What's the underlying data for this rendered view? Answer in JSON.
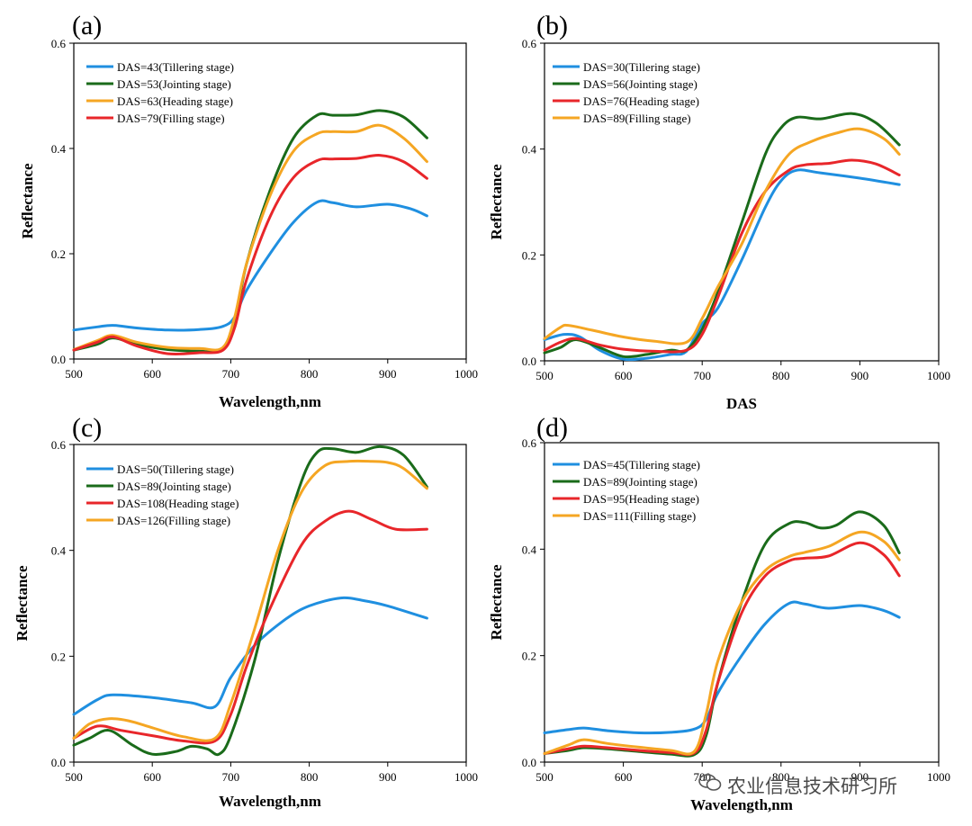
{
  "colors": {
    "blue": "#1f8fe0",
    "green": "#1a6b1a",
    "orange": "#f5a623",
    "red": "#e8262a"
  },
  "watermark": {
    "icon": "wechat-icon",
    "text": "农业信息技术研习所"
  },
  "chart_data": [
    {
      "type": "line",
      "panel": "(a)",
      "xlabel": "Wavelength,nm",
      "ylabel": "Reflectance",
      "xlim": [
        500,
        1000
      ],
      "ylim": [
        0,
        0.6
      ],
      "xticks": [
        "500",
        "600",
        "700",
        "800",
        "900",
        "1000"
      ],
      "yticks": [
        "0.0",
        "0.2",
        "0.4",
        "0.6"
      ],
      "legend_placement": "top-left",
      "series": [
        {
          "name": "DAS=43(Tillering stage)",
          "color": "blue",
          "x": [
            500,
            530,
            550,
            580,
            620,
            660,
            690,
            705,
            720,
            750,
            780,
            810,
            830,
            860,
            900,
            930,
            950
          ],
          "y": [
            0.055,
            0.061,
            0.064,
            0.059,
            0.055,
            0.056,
            0.062,
            0.08,
            0.13,
            0.2,
            0.26,
            0.298,
            0.297,
            0.289,
            0.294,
            0.285,
            0.272
          ]
        },
        {
          "name": "DAS=53(Jointing stage)",
          "color": "green",
          "x": [
            500,
            530,
            550,
            580,
            620,
            660,
            690,
            705,
            720,
            750,
            780,
            810,
            830,
            860,
            890,
            920,
            950
          ],
          "y": [
            0.017,
            0.028,
            0.04,
            0.028,
            0.018,
            0.015,
            0.018,
            0.07,
            0.18,
            0.32,
            0.42,
            0.463,
            0.463,
            0.464,
            0.472,
            0.46,
            0.42
          ]
        },
        {
          "name": "DAS=63(Heading stage)",
          "color": "orange",
          "x": [
            500,
            530,
            550,
            580,
            620,
            660,
            690,
            705,
            720,
            750,
            780,
            810,
            830,
            860,
            890,
            920,
            950
          ],
          "y": [
            0.018,
            0.035,
            0.045,
            0.032,
            0.022,
            0.02,
            0.022,
            0.08,
            0.18,
            0.31,
            0.395,
            0.428,
            0.432,
            0.432,
            0.444,
            0.42,
            0.375
          ]
        },
        {
          "name": "DAS=79(Filling stage)",
          "color": "red",
          "x": [
            500,
            530,
            550,
            580,
            620,
            660,
            690,
            705,
            720,
            750,
            780,
            810,
            830,
            860,
            890,
            920,
            950
          ],
          "y": [
            0.017,
            0.032,
            0.042,
            0.025,
            0.01,
            0.012,
            0.017,
            0.06,
            0.15,
            0.27,
            0.345,
            0.377,
            0.38,
            0.381,
            0.387,
            0.375,
            0.343
          ]
        }
      ]
    },
    {
      "type": "line",
      "panel": "(b)",
      "xlabel": "DAS",
      "ylabel": "Reflectance",
      "xlim": [
        500,
        1000
      ],
      "ylim": [
        0,
        0.6
      ],
      "xticks": [
        "500",
        "600",
        "700",
        "800",
        "900",
        "1000"
      ],
      "yticks": [
        "0.0",
        "0.2",
        "0.4",
        "0.6"
      ],
      "legend_placement": "top-left",
      "series": [
        {
          "name": "DAS=30(Tillering stage)",
          "color": "blue",
          "x": [
            500,
            525,
            545,
            570,
            600,
            630,
            660,
            680,
            700,
            720,
            750,
            780,
            800,
            820,
            850,
            900,
            950
          ],
          "y": [
            0.04,
            0.05,
            0.045,
            0.02,
            0.003,
            0.005,
            0.012,
            0.018,
            0.07,
            0.1,
            0.19,
            0.29,
            0.34,
            0.36,
            0.355,
            0.345,
            0.333
          ]
        },
        {
          "name": "DAS=56(Jointing stage)",
          "color": "green",
          "x": [
            500,
            520,
            540,
            570,
            600,
            630,
            660,
            680,
            700,
            720,
            750,
            780,
            800,
            820,
            850,
            890,
            920,
            950
          ],
          "y": [
            0.015,
            0.025,
            0.04,
            0.025,
            0.008,
            0.012,
            0.02,
            0.02,
            0.06,
            0.13,
            0.26,
            0.39,
            0.44,
            0.46,
            0.457,
            0.467,
            0.45,
            0.408
          ]
        },
        {
          "name": "DAS=76(Heading stage)",
          "color": "red",
          "x": [
            500,
            520,
            540,
            570,
            600,
            640,
            680,
            700,
            720,
            750,
            780,
            810,
            830,
            860,
            890,
            920,
            950
          ],
          "y": [
            0.02,
            0.035,
            0.042,
            0.03,
            0.022,
            0.018,
            0.02,
            0.05,
            0.12,
            0.24,
            0.32,
            0.36,
            0.37,
            0.373,
            0.379,
            0.372,
            0.351
          ]
        },
        {
          "name": "DAS=89(Filling stage)",
          "color": "orange",
          "x": [
            500,
            520,
            530,
            560,
            600,
            640,
            680,
            700,
            720,
            750,
            780,
            810,
            840,
            870,
            900,
            930,
            950
          ],
          "y": [
            0.042,
            0.063,
            0.067,
            0.058,
            0.045,
            0.037,
            0.035,
            0.08,
            0.14,
            0.22,
            0.32,
            0.39,
            0.415,
            0.43,
            0.438,
            0.42,
            0.39
          ]
        }
      ]
    },
    {
      "type": "line",
      "panel": "(c)",
      "xlabel": "Wavelength,nm",
      "ylabel": "Reflectance",
      "xlim": [
        500,
        1000
      ],
      "ylim": [
        0,
        0.6
      ],
      "xticks": [
        "500",
        "600",
        "700",
        "800",
        "900",
        "1000"
      ],
      "yticks": [
        "0.0",
        "0.2",
        "0.4",
        "0.6"
      ],
      "legend_placement": "top-left",
      "series": [
        {
          "name": "DAS=50(Tillering stage)",
          "color": "blue",
          "x": [
            500,
            530,
            550,
            600,
            650,
            680,
            700,
            730,
            770,
            800,
            840,
            870,
            900,
            950
          ],
          "y": [
            0.09,
            0.118,
            0.127,
            0.122,
            0.112,
            0.105,
            0.16,
            0.22,
            0.27,
            0.295,
            0.31,
            0.305,
            0.295,
            0.272
          ]
        },
        {
          "name": "DAS=89(Jointing stage)",
          "color": "green",
          "x": [
            500,
            520,
            545,
            575,
            600,
            630,
            650,
            670,
            685,
            700,
            730,
            760,
            790,
            810,
            830,
            860,
            890,
            920,
            950
          ],
          "y": [
            0.032,
            0.045,
            0.06,
            0.032,
            0.015,
            0.02,
            0.03,
            0.025,
            0.015,
            0.05,
            0.19,
            0.38,
            0.53,
            0.585,
            0.592,
            0.585,
            0.596,
            0.58,
            0.52
          ]
        },
        {
          "name": "DAS=108(Heading stage)",
          "color": "red",
          "x": [
            500,
            530,
            560,
            600,
            640,
            680,
            700,
            720,
            750,
            790,
            820,
            850,
            880,
            910,
            950
          ],
          "y": [
            0.045,
            0.068,
            0.06,
            0.05,
            0.04,
            0.04,
            0.09,
            0.18,
            0.29,
            0.41,
            0.455,
            0.474,
            0.458,
            0.44,
            0.44
          ]
        },
        {
          "name": "DAS=126(Filling stage)",
          "color": "orange",
          "x": [
            500,
            520,
            545,
            570,
            600,
            640,
            680,
            700,
            730,
            760,
            790,
            820,
            850,
            880,
            900,
            920,
            950
          ],
          "y": [
            0.045,
            0.072,
            0.082,
            0.078,
            0.065,
            0.048,
            0.045,
            0.11,
            0.25,
            0.4,
            0.51,
            0.56,
            0.568,
            0.568,
            0.566,
            0.555,
            0.517
          ]
        }
      ]
    },
    {
      "type": "line",
      "panel": "(d)",
      "xlabel": "Wavelength,nm",
      "ylabel": "Reflectance",
      "xlim": [
        500,
        1000
      ],
      "ylim": [
        0,
        0.6
      ],
      "xticks": [
        "500",
        "600",
        "700",
        "800",
        "900",
        "1000"
      ],
      "yticks": [
        "0.0",
        "0.2",
        "0.4",
        "0.6"
      ],
      "legend_placement": "top-left",
      "series": [
        {
          "name": "DAS=45(Tillering stage)",
          "color": "blue",
          "x": [
            500,
            530,
            550,
            580,
            620,
            660,
            690,
            705,
            720,
            750,
            780,
            810,
            830,
            860,
            900,
            930,
            950
          ],
          "y": [
            0.055,
            0.061,
            0.064,
            0.059,
            0.055,
            0.056,
            0.062,
            0.08,
            0.13,
            0.2,
            0.26,
            0.298,
            0.297,
            0.289,
            0.294,
            0.285,
            0.272
          ]
        },
        {
          "name": "DAS=89(Jointing stage)",
          "color": "green",
          "x": [
            500,
            530,
            550,
            580,
            620,
            660,
            690,
            705,
            720,
            750,
            780,
            810,
            830,
            850,
            870,
            900,
            930,
            950
          ],
          "y": [
            0.016,
            0.022,
            0.027,
            0.025,
            0.02,
            0.015,
            0.014,
            0.05,
            0.15,
            0.3,
            0.41,
            0.448,
            0.45,
            0.44,
            0.445,
            0.47,
            0.445,
            0.393
          ]
        },
        {
          "name": "DAS=95(Heading stage)",
          "color": "red",
          "x": [
            500,
            530,
            550,
            580,
            620,
            660,
            690,
            705,
            720,
            750,
            780,
            810,
            830,
            860,
            900,
            930,
            950
          ],
          "y": [
            0.016,
            0.025,
            0.03,
            0.027,
            0.022,
            0.018,
            0.017,
            0.06,
            0.15,
            0.28,
            0.35,
            0.378,
            0.383,
            0.387,
            0.412,
            0.39,
            0.35
          ]
        },
        {
          "name": "DAS=111(Filling stage)",
          "color": "orange",
          "x": [
            500,
            530,
            550,
            580,
            620,
            660,
            690,
            705,
            720,
            750,
            780,
            810,
            830,
            860,
            900,
            930,
            950
          ],
          "y": [
            0.016,
            0.032,
            0.042,
            0.035,
            0.028,
            0.022,
            0.02,
            0.09,
            0.19,
            0.3,
            0.36,
            0.386,
            0.394,
            0.405,
            0.432,
            0.415,
            0.38
          ]
        }
      ]
    }
  ]
}
